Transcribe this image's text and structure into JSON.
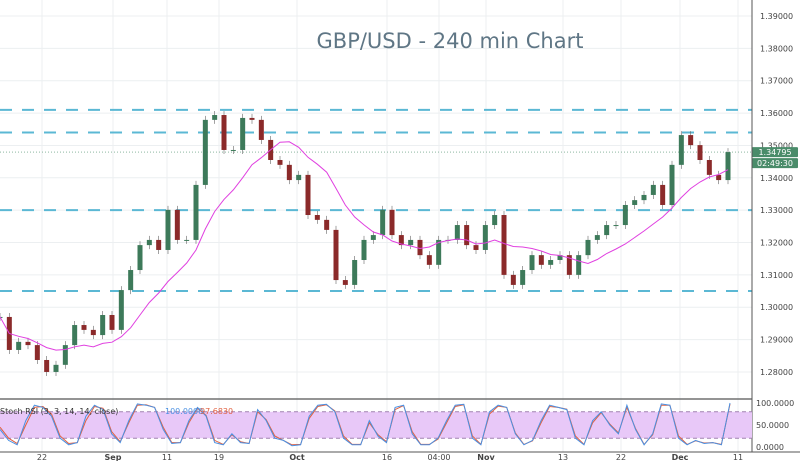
{
  "chart_data": {
    "type": "candlestick",
    "title": "GBP/USD - 240 min Chart",
    "ylim": [
      1.275,
      1.395
    ],
    "y_ticks": [
      "1.39000",
      "1.38000",
      "1.37000",
      "1.36000",
      "1.35000",
      "1.34000",
      "1.33000",
      "1.32000",
      "1.31000",
      "1.30000",
      "1.29000",
      "1.28000"
    ],
    "x_ticks": [
      {
        "label": "22",
        "bold": false
      },
      {
        "label": "Sep",
        "bold": true
      },
      {
        "label": "11",
        "bold": false
      },
      {
        "label": "19",
        "bold": false
      },
      {
        "label": "Oct",
        "bold": true
      },
      {
        "label": "16",
        "bold": false
      },
      {
        "label": "04:00",
        "bold": false
      },
      {
        "label": "Nov",
        "bold": true
      },
      {
        "label": "13",
        "bold": false
      },
      {
        "label": "22",
        "bold": false
      },
      {
        "label": "Dec",
        "bold": true
      },
      {
        "label": "11",
        "bold": false
      }
    ],
    "grid": true,
    "closes": [
      1.297,
      1.2868,
      1.2893,
      1.2883,
      1.2837,
      1.28,
      1.2822,
      1.2883,
      1.2945,
      1.293,
      1.2914,
      1.2976,
      1.293,
      1.3053,
      1.3115,
      1.3192,
      1.3208,
      1.3177,
      1.3301,
      1.3208,
      1.3208,
      1.3378,
      1.3579,
      1.3594,
      1.3486,
      1.3486,
      1.3585,
      1.3579,
      1.3517,
      1.3455,
      1.344,
      1.3393,
      1.3409,
      1.3285,
      1.327,
      1.3239,
      1.3084,
      1.3069,
      1.3146,
      1.3208,
      1.3223,
      1.3301,
      1.3223,
      1.3192,
      1.3208,
      1.3161,
      1.3131,
      1.3208,
      1.3208,
      1.3254,
      1.3192,
      1.3177,
      1.3254,
      1.3285,
      1.31,
      1.3069,
      1.3115,
      1.3161,
      1.3131,
      1.3146,
      1.3161,
      1.31,
      1.3161,
      1.3208,
      1.3223,
      1.3254,
      1.3254,
      1.3316,
      1.3331,
      1.3347,
      1.3378,
      1.3316,
      1.344,
      1.3532,
      1.3501,
      1.3455,
      1.3409,
      1.3393,
      1.34795
    ],
    "horizontal_levels": [
      1.361,
      1.354,
      1.33,
      1.305
    ],
    "last_price": "1.34795",
    "countdown": "02:49:30",
    "colors": {
      "up": "#3d7a5a",
      "down": "#8b2a2a",
      "ma": "#e040e0",
      "levels": "#5bb8d4",
      "price_tag": "#4a8c6a",
      "stoch_k": "#4a90e2",
      "stoch_d": "#e06040",
      "band": "#e8c8f8"
    },
    "indicator": {
      "label": "Stoch RSI (3, 3, 14, 14, close)",
      "k_value": "100.0000",
      "d_value": "97.6830",
      "ylim": [
        0,
        100
      ],
      "y_ticks": [
        "100.0000",
        "50.0000",
        "0.0000"
      ],
      "band": [
        20,
        80
      ],
      "k": [
        40,
        15,
        5,
        60,
        95,
        90,
        70,
        20,
        5,
        10,
        70,
        95,
        85,
        30,
        10,
        60,
        98,
        95,
        90,
        40,
        8,
        10,
        60,
        90,
        70,
        10,
        5,
        30,
        10,
        8,
        85,
        60,
        20,
        15,
        3,
        5,
        70,
        95,
        97,
        80,
        20,
        5,
        5,
        60,
        25,
        10,
        90,
        95,
        30,
        5,
        5,
        20,
        60,
        95,
        97,
        20,
        5,
        80,
        95,
        90,
        30,
        5,
        15,
        60,
        95,
        90,
        85,
        20,
        5,
        60,
        80,
        50,
        30,
        95,
        40,
        5,
        30,
        98,
        95,
        20,
        5,
        15,
        8,
        10,
        5,
        100
      ],
      "d": [
        45,
        20,
        8,
        50,
        90,
        92,
        75,
        25,
        8,
        10,
        60,
        92,
        88,
        35,
        12,
        55,
        95,
        96,
        90,
        45,
        10,
        10,
        55,
        88,
        72,
        15,
        6,
        28,
        12,
        8,
        80,
        62,
        25,
        15,
        5,
        6,
        65,
        92,
        96,
        82,
        25,
        6,
        6,
        55,
        28,
        12,
        85,
        94,
        35,
        6,
        6,
        18,
        55,
        92,
        96,
        25,
        6,
        75,
        93,
        90,
        32,
        6,
        14,
        55,
        92,
        90,
        86,
        25,
        6,
        55,
        78,
        52,
        32,
        90,
        42,
        6,
        28,
        95,
        95,
        25,
        6,
        14,
        9,
        10,
        6,
        97.683
      ]
    }
  }
}
